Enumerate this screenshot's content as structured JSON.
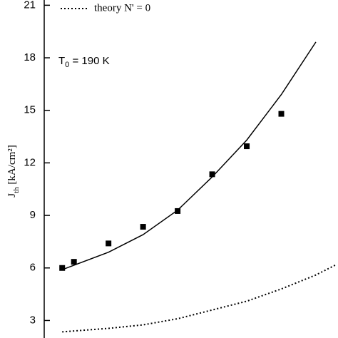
{
  "chart_data": {
    "type": "scatter",
    "ylabel": {
      "main": "J",
      "sub": "th",
      "rest": " [kA/cm²]"
    },
    "annotation": {
      "main": "T",
      "sub": "0",
      "rest": " = 190 K"
    },
    "xlim": [
      7,
      432
    ],
    "ylim": [
      2,
      21.3
    ],
    "yticks": [
      3,
      6,
      9,
      12,
      15,
      18,
      21
    ],
    "series": [
      {
        "style": "markers",
        "color": "#000000",
        "x": [
          33,
          50,
          100,
          150,
          200,
          250,
          300,
          350
        ],
        "values": [
          6.0,
          6.35,
          7.4,
          8.35,
          9.25,
          11.35,
          12.95,
          14.8
        ]
      },
      {
        "style": "solid",
        "color": "#000000",
        "x": [
          33,
          100,
          150,
          200,
          250,
          300,
          350,
          400
        ],
        "values": [
          5.9,
          6.9,
          7.9,
          9.3,
          11.2,
          13.3,
          15.9,
          18.9
        ]
      },
      {
        "name": "theory N' = 0",
        "style": "dotted",
        "color": "#000000",
        "x": [
          33,
          100,
          150,
          200,
          250,
          300,
          350,
          400,
          430
        ],
        "values": [
          2.35,
          2.55,
          2.75,
          3.1,
          3.6,
          4.1,
          4.8,
          5.6,
          6.2
        ]
      }
    ]
  }
}
